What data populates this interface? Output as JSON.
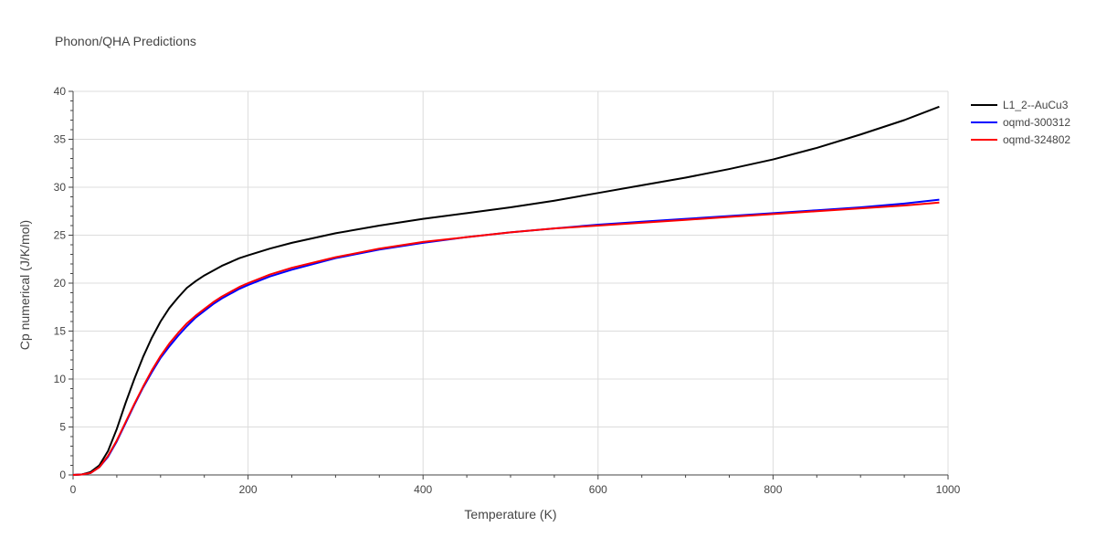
{
  "chart_data": {
    "type": "line",
    "title": "Phonon/QHA Predictions",
    "xlabel": "Temperature (K)",
    "ylabel": "Cp numerical (J/K/mol)",
    "xlim": [
      0,
      1000
    ],
    "ylim": [
      0,
      40
    ],
    "xticks": [
      0,
      200,
      400,
      600,
      800,
      1000
    ],
    "yticks": [
      0,
      5,
      10,
      15,
      20,
      25,
      30,
      35,
      40
    ],
    "grid": true,
    "legend_position": "top-right",
    "series": [
      {
        "name": "L1_2--AuCu3",
        "color": "#000000",
        "x": [
          0,
          10,
          20,
          30,
          40,
          50,
          60,
          70,
          80,
          90,
          100,
          110,
          120,
          130,
          140,
          150,
          160,
          170,
          180,
          190,
          200,
          225,
          250,
          300,
          350,
          400,
          450,
          500,
          550,
          600,
          650,
          700,
          750,
          800,
          850,
          900,
          950,
          990
        ],
        "y": [
          0,
          0.05,
          0.3,
          1.0,
          2.5,
          4.8,
          7.5,
          10.0,
          12.3,
          14.3,
          16.0,
          17.4,
          18.5,
          19.5,
          20.2,
          20.8,
          21.3,
          21.8,
          22.2,
          22.6,
          22.9,
          23.6,
          24.2,
          25.2,
          26.0,
          26.7,
          27.3,
          27.9,
          28.6,
          29.4,
          30.2,
          31.0,
          31.9,
          32.9,
          34.1,
          35.5,
          37.0,
          38.4
        ]
      },
      {
        "name": "oqmd-300312",
        "color": "#0000ff",
        "x": [
          0,
          10,
          20,
          30,
          40,
          50,
          60,
          70,
          80,
          90,
          100,
          110,
          120,
          130,
          140,
          150,
          160,
          170,
          180,
          190,
          200,
          225,
          250,
          300,
          350,
          400,
          450,
          500,
          550,
          600,
          650,
          700,
          750,
          800,
          850,
          900,
          950,
          990
        ],
        "y": [
          0,
          0.05,
          0.2,
          0.8,
          1.9,
          3.5,
          5.4,
          7.3,
          9.1,
          10.7,
          12.2,
          13.4,
          14.5,
          15.5,
          16.4,
          17.1,
          17.8,
          18.4,
          18.9,
          19.4,
          19.8,
          20.7,
          21.4,
          22.6,
          23.5,
          24.2,
          24.8,
          25.3,
          25.7,
          26.1,
          26.4,
          26.7,
          27.0,
          27.3,
          27.6,
          27.9,
          28.3,
          28.7
        ]
      },
      {
        "name": "oqmd-324802",
        "color": "#ff0000",
        "x": [
          0,
          10,
          20,
          30,
          40,
          50,
          60,
          70,
          80,
          90,
          100,
          110,
          120,
          130,
          140,
          150,
          160,
          170,
          180,
          190,
          200,
          225,
          250,
          300,
          350,
          400,
          450,
          500,
          550,
          600,
          650,
          700,
          750,
          800,
          850,
          900,
          950,
          990
        ],
        "y": [
          0,
          0.05,
          0.2,
          0.8,
          2.0,
          3.6,
          5.5,
          7.4,
          9.2,
          10.9,
          12.4,
          13.7,
          14.8,
          15.8,
          16.6,
          17.3,
          18.0,
          18.6,
          19.1,
          19.6,
          20.0,
          20.9,
          21.6,
          22.7,
          23.6,
          24.3,
          24.8,
          25.3,
          25.7,
          26.0,
          26.3,
          26.6,
          26.9,
          27.2,
          27.5,
          27.8,
          28.1,
          28.4
        ]
      }
    ]
  }
}
